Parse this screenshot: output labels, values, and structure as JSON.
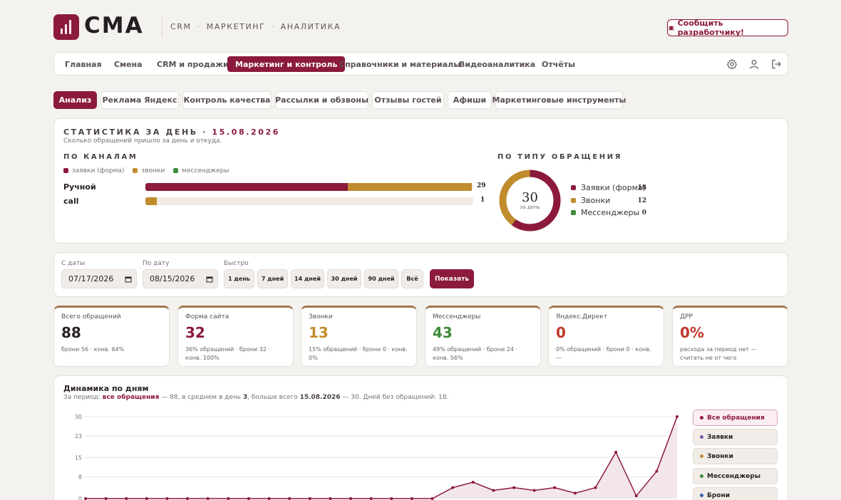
{
  "header": {
    "logo_text": "CMA",
    "nav": [
      "CRM",
      "МАРКЕТИНГ",
      "АНАЛИТИКА"
    ],
    "nav_separator": "·",
    "report_button": "Сообщить разработчику!"
  },
  "main_nav": {
    "items": [
      "Главная",
      "Смена",
      "CRM и продажи",
      "Маркетинг и контроль",
      "Справочники и материалы",
      "Видеоаналитика",
      "Отчёты"
    ],
    "active": "Маркетинг и контроль",
    "icons": [
      "gear-icon",
      "user-icon",
      "logout-icon"
    ]
  },
  "sub_tabs": {
    "items": [
      "Анализ",
      "Реклама Яндекс",
      "Контроль качества",
      "Рассылки и обзвоны",
      "Отзывы гостей",
      "Афиши",
      "Маркетинговые инструменты"
    ],
    "active": "Анализ"
  },
  "stats": {
    "title": "СТАТИСТИКА ЗА ДЕНЬ ·",
    "date": "15.08.2026",
    "subtitle": "Сколько обращений пришло за день и откуда.",
    "channels_title": "ПО КАНАЛАМ",
    "legend": [
      {
        "label": "заявки (форма)",
        "color": "#8b1a3c"
      },
      {
        "label": "звонки",
        "color": "#c08c2e"
      },
      {
        "label": "мессенджеры",
        "color": "#3f8a3a"
      }
    ],
    "channels": [
      {
        "name": "Ручной",
        "total": "29",
        "form_share": 0.62,
        "calls_share": 0.38,
        "fill": 0.995
      },
      {
        "name": "call",
        "total": "1",
        "form_share": 0.0,
        "calls_share": 1.0,
        "fill": 0.035
      }
    ],
    "type_title": "ПО ТИПУ ОБРАЩЕНИЯ",
    "donut_total": "30",
    "donut_caption": "за день",
    "types": [
      {
        "label": "Заявки (форма)",
        "value": "18",
        "color": "#8b1a3c"
      },
      {
        "label": "Звонки",
        "value": "12",
        "color": "#c08c2e"
      },
      {
        "label": "Мессенджеры",
        "value": "0",
        "color": "#3f8a3a"
      }
    ]
  },
  "filters": {
    "from_label": "С даты",
    "from_value": "07/17/2026",
    "to_label": "По дату",
    "to_value": "08/15/2026",
    "quick_label": "Быстро",
    "quick": [
      "1 день",
      "7 дней",
      "14 дней",
      "30 дней",
      "90 дней",
      "Всё"
    ],
    "show_button": "Показать"
  },
  "kpis": [
    {
      "title": "Всего обращений",
      "value": "88",
      "detail": "брони 56 · конв. 64%",
      "color": "#2a2226"
    },
    {
      "title": "Форма сайта",
      "value": "32",
      "detail": "36% обращений · брони 32 · конв. 100%",
      "color": "#8b1a3c"
    },
    {
      "title": "Звонки",
      "value": "13",
      "detail": "15% обращений · брони 0 · конв. 0%",
      "color": "#c08c2e"
    },
    {
      "title": "Мессенджеры",
      "value": "43",
      "detail": "49% обращений · брони 24 · конв. 56%",
      "color": "#3f8a3a"
    },
    {
      "title": "Яндекс.Директ",
      "value": "0",
      "detail": "0% обращений · брони 0 · конв. —",
      "color": "#c0392b"
    },
    {
      "title": "ДРР",
      "value": "0%",
      "detail": "расхода за период нет — считать не от чего",
      "color": "#c0392b"
    }
  ],
  "dynamics": {
    "title": "Динамика по дням",
    "sub_prefix": "За период:",
    "sub_series": "все обращения",
    "sub_middle": "— 88, в среднем в день",
    "sub_avg": "3",
    "sub_more": ", больше всего",
    "sub_date": "15.08.2026",
    "sub_tail": "— 30. Дней без обращений: 18.",
    "series_buttons": [
      {
        "label": "Все обращения",
        "color": "#8b1a3c",
        "active": true
      },
      {
        "label": "Заявки",
        "color": "#7a5aa0",
        "active": false
      },
      {
        "label": "Звонки",
        "color": "#c08c2e",
        "active": false
      },
      {
        "label": "Мессенджеры",
        "color": "#3f8a3a",
        "active": false
      },
      {
        "label": "Брони",
        "color": "#3b5fa8",
        "active": false
      }
    ]
  },
  "chart_data": {
    "type": "area",
    "y_ticks": [
      "30",
      "23",
      "15",
      "8",
      "0"
    ],
    "ylim": [
      0,
      30
    ],
    "series": [
      {
        "name": "Все обращения",
        "values": [
          0,
          0,
          0,
          0,
          0,
          0,
          0,
          0,
          0,
          0,
          0,
          0,
          0,
          0,
          0,
          0,
          0,
          0,
          4,
          6,
          3,
          4,
          3,
          4,
          2,
          4,
          17,
          1,
          10,
          30
        ]
      }
    ]
  }
}
